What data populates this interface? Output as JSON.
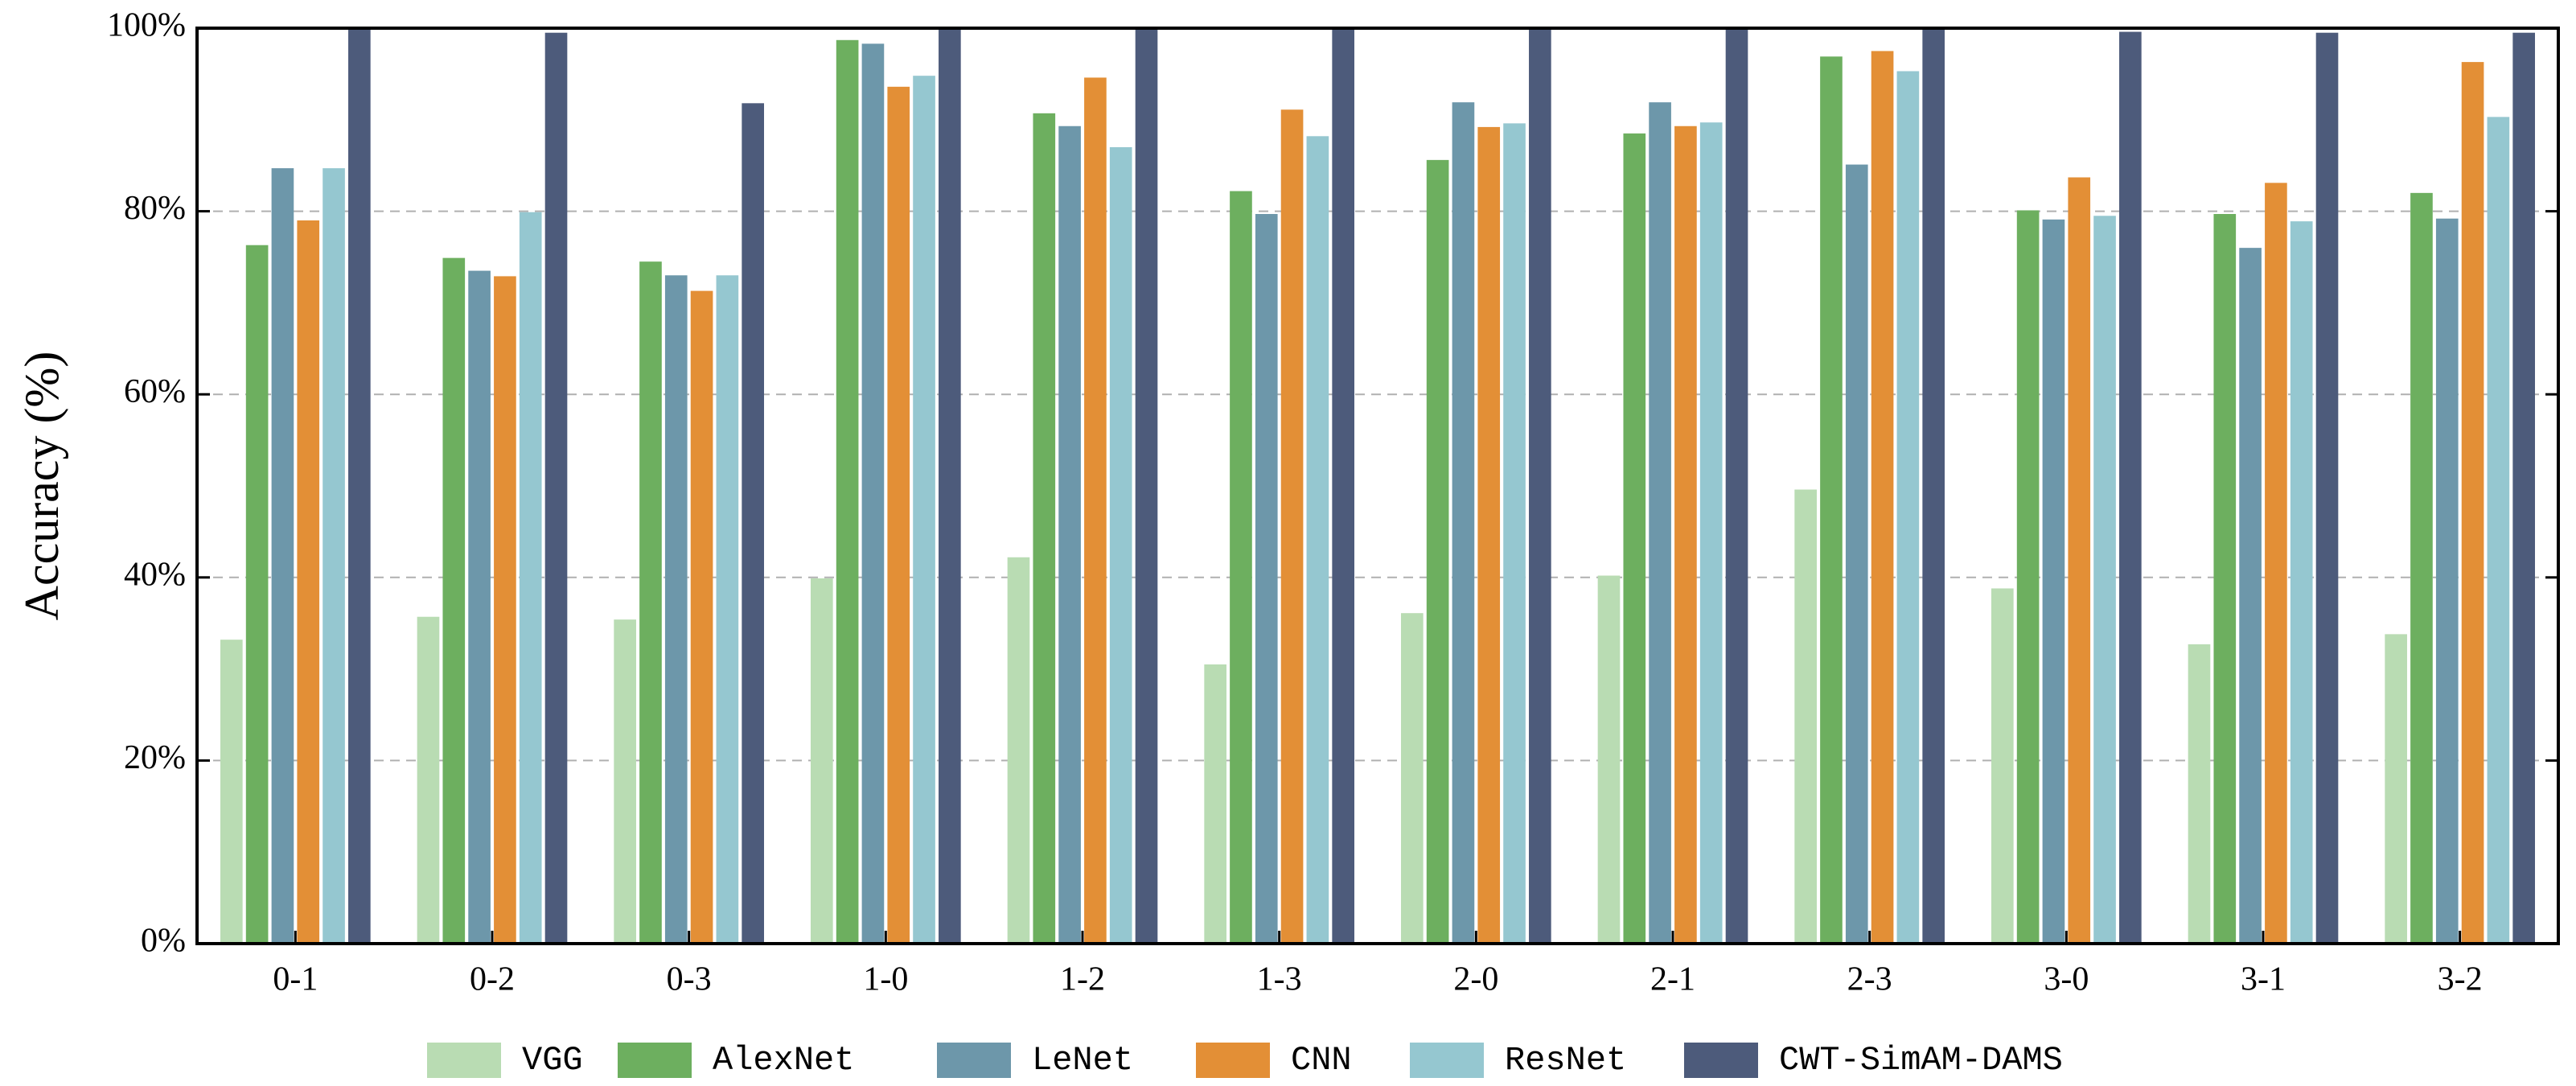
{
  "chart_data": {
    "type": "bar",
    "y_label": "Accuracy (%)",
    "categories": [
      "0-1",
      "0-2",
      "0-3",
      "1-0",
      "1-2",
      "1-3",
      "2-0",
      "2-1",
      "2-3",
      "3-0",
      "3-1",
      "3-2"
    ],
    "series": [
      {
        "name": "VGG",
        "color": "#b9dcb3",
        "values": [
          33.2,
          35.7,
          35.4,
          39.9,
          42.2,
          30.5,
          36.1,
          40.2,
          49.6,
          38.8,
          32.7,
          33.8
        ]
      },
      {
        "name": "AlexNet",
        "color": "#6daf5f",
        "values": [
          76.3,
          74.9,
          74.5,
          98.7,
          90.7,
          82.2,
          85.6,
          88.5,
          96.9,
          80.1,
          79.7,
          82.0
        ]
      },
      {
        "name": "LeNet",
        "color": "#6d97aa",
        "values": [
          84.7,
          73.5,
          73.0,
          98.3,
          89.3,
          79.7,
          91.9,
          91.9,
          85.1,
          79.1,
          76.0,
          79.2
        ]
      },
      {
        "name": "CNN",
        "color": "#e38f36",
        "values": [
          79.0,
          72.9,
          71.3,
          93.6,
          94.6,
          91.1,
          89.2,
          89.3,
          97.5,
          83.7,
          83.1,
          96.3
        ]
      },
      {
        "name": "ResNet",
        "color": "#95c7d0",
        "values": [
          84.7,
          79.9,
          73.0,
          94.8,
          87.0,
          88.2,
          89.6,
          89.7,
          95.3,
          79.5,
          78.9,
          90.3
        ]
      },
      {
        "name": "CWT-SimAM-DAMS",
        "color": "#4d5b7b",
        "values": [
          100,
          99.5,
          91.8,
          100,
          100,
          100,
          100,
          100,
          100,
          99.6,
          99.5,
          99.5
        ]
      }
    ],
    "ylim": [
      0,
      100
    ],
    "yticks": [
      {
        "value": 0,
        "label": "0%"
      },
      {
        "value": 20,
        "label": "20%"
      },
      {
        "value": 40,
        "label": "40%"
      },
      {
        "value": 60,
        "label": "60%"
      },
      {
        "value": 80,
        "label": "80%"
      },
      {
        "value": 100,
        "label": "100%"
      }
    ],
    "grid": true,
    "legend": "bottom"
  }
}
